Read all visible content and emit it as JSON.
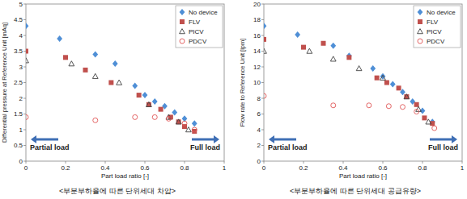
{
  "chart_data": [
    {
      "type": "scatter",
      "y_label": "Differential pressure at Reference Unit [mAq]",
      "x_label": "Part load ratio [-]",
      "caption": "<부분부하율에 따른 단위세대 차압>",
      "annotations": [
        "Partial load",
        "Full load"
      ],
      "xlim": [
        0,
        1
      ],
      "xticks": [
        0,
        0.2,
        0.4,
        0.6,
        0.8,
        1
      ],
      "ylim": [
        0,
        5
      ],
      "yticks": [
        0,
        0.5,
        1,
        1.5,
        2,
        2.5,
        3,
        3.5,
        4,
        4.5,
        5
      ],
      "grid": false,
      "legend": "upper right",
      "series": [
        {
          "name": "No device",
          "color": "#4f8fd6",
          "marker": "diamond",
          "x": [
            0,
            0.17,
            0.35,
            0.45,
            0.55,
            0.6,
            0.65,
            0.7,
            0.75,
            0.8,
            0.85
          ],
          "values": [
            4.3,
            3.9,
            3.4,
            3.1,
            2.4,
            2.1,
            1.9,
            1.75,
            1.55,
            1.35,
            1.2
          ]
        },
        {
          "name": "FLV",
          "color": "#c0504d",
          "marker": "square",
          "x": [
            0,
            0.2,
            0.3,
            0.43,
            0.57,
            0.62,
            0.68,
            0.73,
            0.77,
            0.8,
            0.85
          ],
          "values": [
            3.5,
            3.3,
            2.9,
            2.5,
            2.1,
            1.8,
            1.65,
            1.4,
            1.25,
            1.1,
            0.95
          ]
        },
        {
          "name": "PICV",
          "color": "#404040",
          "marker": "triangle-open",
          "x": [
            0,
            0.23,
            0.35,
            0.47,
            0.62,
            0.72,
            0.77,
            0.82
          ],
          "values": [
            3.2,
            3.1,
            2.7,
            2.5,
            1.8,
            1.4,
            1.25,
            1.0
          ]
        },
        {
          "name": "PDCV",
          "color": "#e05555",
          "marker": "circle-open",
          "x": [
            0,
            0.35,
            0.55,
            0.65,
            0.72,
            0.8,
            0.85
          ],
          "values": [
            1.4,
            1.3,
            1.4,
            1.4,
            1.35,
            1.2,
            1.0
          ]
        }
      ]
    },
    {
      "type": "scatter",
      "y_label": "Flow rate to Reference Unit [lpm]",
      "x_label": "Part load ratio [-]",
      "caption": "<부분부하율에 따른 단위세대 공급유량>",
      "annotations": [
        "Partial load",
        "Full load"
      ],
      "xlim": [
        0,
        1
      ],
      "xticks": [
        0,
        0.2,
        0.4,
        0.6,
        0.8,
        1
      ],
      "ylim": [
        0,
        20
      ],
      "yticks": [
        0,
        2,
        4,
        6,
        8,
        10,
        12,
        14,
        16,
        18,
        20
      ],
      "grid": false,
      "legend": "upper right",
      "series": [
        {
          "name": "No device",
          "color": "#4f8fd6",
          "marker": "diamond",
          "x": [
            0,
            0.17,
            0.35,
            0.43,
            0.55,
            0.6,
            0.65,
            0.7,
            0.75,
            0.8,
            0.85
          ],
          "values": [
            17.2,
            16.1,
            14.7,
            13.4,
            11.8,
            10.8,
            9.8,
            8.8,
            7.6,
            6.4,
            5.0
          ]
        },
        {
          "name": "FLV",
          "color": "#c0504d",
          "marker": "square",
          "x": [
            0,
            0.2,
            0.3,
            0.43,
            0.57,
            0.62,
            0.68,
            0.72,
            0.77,
            0.81,
            0.85
          ],
          "values": [
            15.5,
            14.5,
            15.0,
            13.2,
            10.6,
            10.0,
            9.3,
            8.2,
            7.2,
            5.5,
            4.8
          ]
        },
        {
          "name": "PICV",
          "color": "#404040",
          "marker": "triangle-open",
          "x": [
            0,
            0.23,
            0.35,
            0.48,
            0.6,
            0.72,
            0.78,
            0.83
          ],
          "values": [
            14,
            14,
            13,
            11.8,
            10.6,
            8.2,
            6.6,
            5.0
          ]
        },
        {
          "name": "PDCV",
          "color": "#e05555",
          "marker": "circle-open",
          "x": [
            0,
            0.35,
            0.53,
            0.63,
            0.7,
            0.77,
            0.86
          ],
          "values": [
            8.3,
            7.1,
            7.1,
            7.0,
            6.9,
            6.3,
            4.2
          ]
        }
      ]
    }
  ]
}
